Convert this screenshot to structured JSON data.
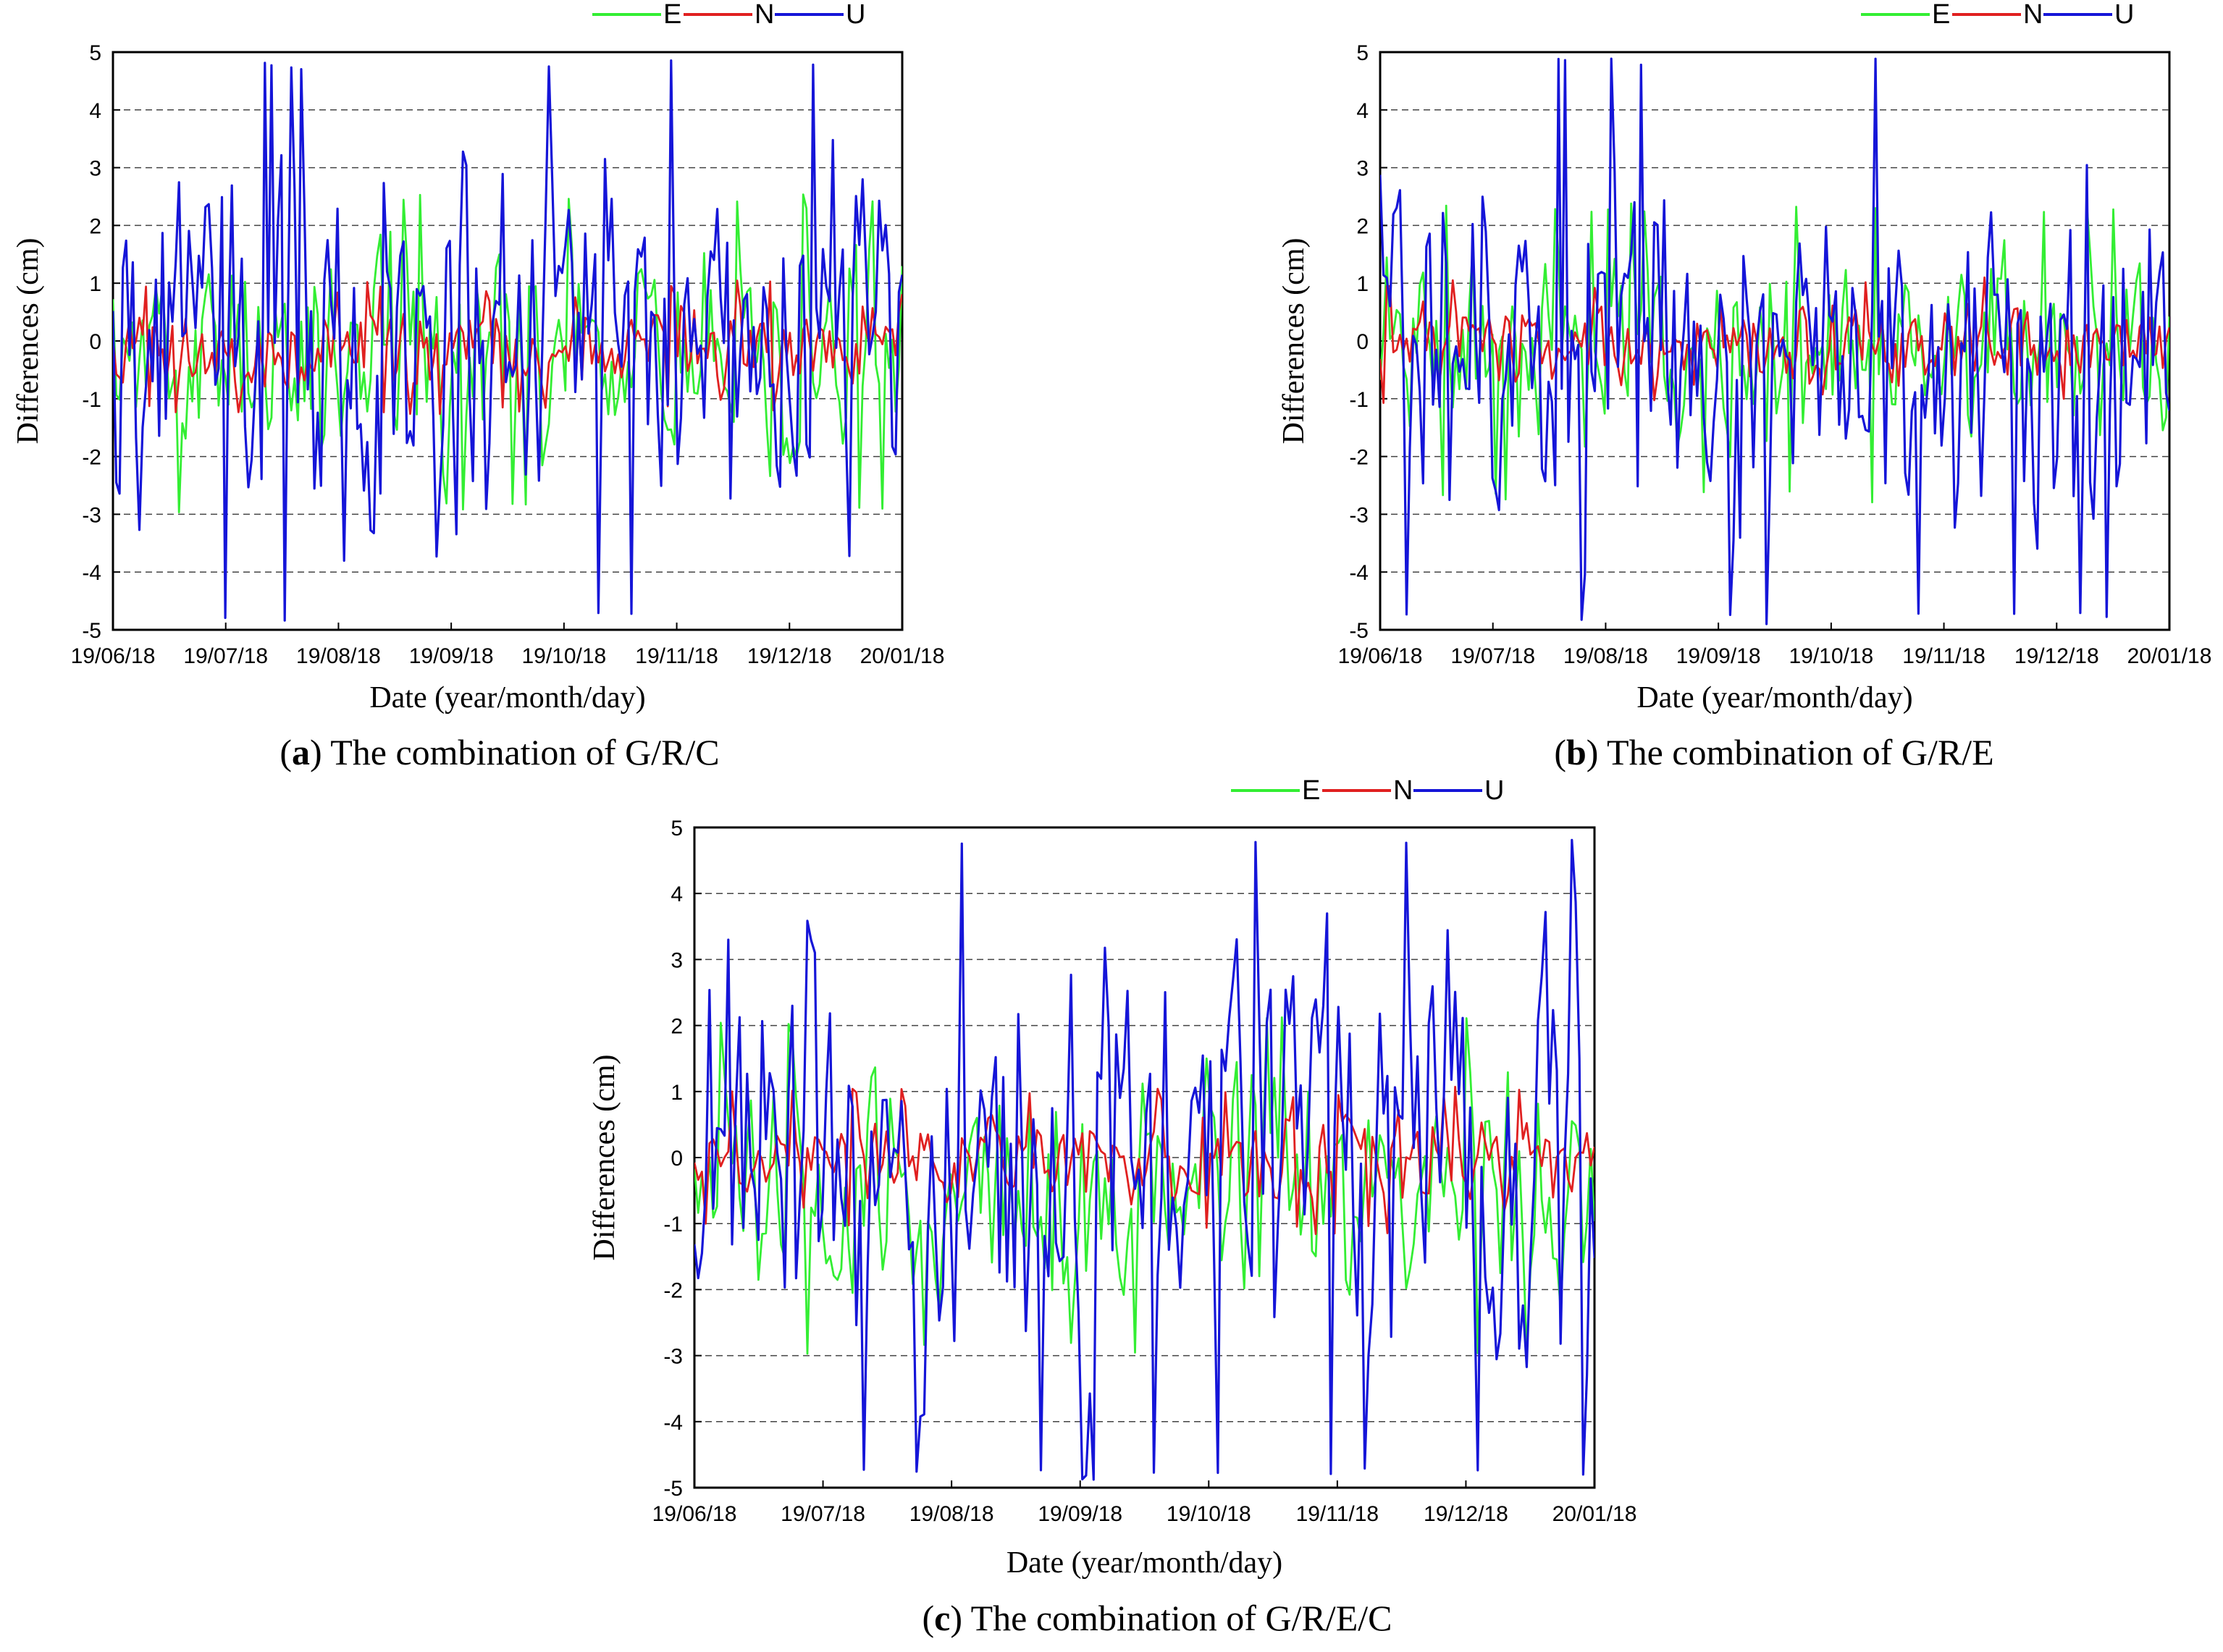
{
  "chart_data": [
    {
      "type": "line",
      "id": "a",
      "caption_letter": "a",
      "caption_text": " The combination of G/R/C",
      "xlabel": "Date (year/month/day)",
      "ylabel": "Differences (cm)",
      "ylim": [
        -5,
        5
      ],
      "yticks": [
        -5,
        -4,
        -3,
        -2,
        -1,
        0,
        1,
        2,
        3,
        4,
        5
      ],
      "xticks": [
        "19/06/18",
        "19/07/18",
        "19/08/18",
        "19/09/18",
        "19/10/18",
        "19/11/18",
        "19/12/18",
        "20/01/18"
      ],
      "grid": "horizontal dashed",
      "legend_position": "top-right",
      "series": [
        {
          "name": "E",
          "color": "#33ee33",
          "amplitude_range": [
            -3,
            2.6
          ],
          "n_points": 240,
          "seed": 11
        },
        {
          "name": "N",
          "color": "#e02020",
          "amplitude_range": [
            -1.3,
            1.1
          ],
          "n_points": 240,
          "seed": 12
        },
        {
          "name": "U",
          "color": "#1515d8",
          "amplitude_range": [
            -4.9,
            4.9
          ],
          "n_points": 240,
          "seed": 13
        }
      ]
    },
    {
      "type": "line",
      "id": "b",
      "caption_letter": "b",
      "caption_text": " The combination of G/R/E",
      "xlabel": "Date (year/month/day)",
      "ylabel": "Differences (cm)",
      "ylim": [
        -5,
        5
      ],
      "yticks": [
        -5,
        -4,
        -3,
        -2,
        -1,
        0,
        1,
        2,
        3,
        4,
        5
      ],
      "xticks": [
        "19/06/18",
        "19/07/18",
        "19/08/18",
        "19/09/18",
        "19/10/18",
        "19/11/18",
        "19/12/18",
        "20/01/18"
      ],
      "grid": "horizontal dashed",
      "legend_position": "top-right",
      "series": [
        {
          "name": "E",
          "color": "#33ee33",
          "amplitude_range": [
            -2.8,
            2.4
          ],
          "n_points": 240,
          "seed": 21
        },
        {
          "name": "N",
          "color": "#e02020",
          "amplitude_range": [
            -1.2,
            1.1
          ],
          "n_points": 240,
          "seed": 22
        },
        {
          "name": "U",
          "color": "#1515d8",
          "amplitude_range": [
            -4.9,
            4.9
          ],
          "n_points": 240,
          "seed": 23
        }
      ]
    },
    {
      "type": "line",
      "id": "c",
      "caption_letter": "c",
      "caption_text": " The combination of G/R/E/C",
      "xlabel": "Date (year/month/day)",
      "ylabel": "Differences (cm)",
      "ylim": [
        -5,
        5
      ],
      "yticks": [
        -5,
        -4,
        -3,
        -2,
        -1,
        0,
        1,
        2,
        3,
        4,
        5
      ],
      "xticks": [
        "19/06/18",
        "19/07/18",
        "19/08/18",
        "19/09/18",
        "19/10/18",
        "19/11/18",
        "19/12/18",
        "20/01/18"
      ],
      "grid": "horizontal dashed",
      "legend_position": "top-right",
      "series": [
        {
          "name": "E",
          "color": "#33ee33",
          "amplitude_range": [
            -3,
            2.2
          ],
          "n_points": 240,
          "seed": 31
        },
        {
          "name": "N",
          "color": "#e02020",
          "amplitude_range": [
            -1.2,
            1.1
          ],
          "n_points": 240,
          "seed": 32
        },
        {
          "name": "U",
          "color": "#1515d8",
          "amplitude_range": [
            -4.9,
            4.9
          ],
          "n_points": 240,
          "seed": 33
        }
      ]
    }
  ]
}
